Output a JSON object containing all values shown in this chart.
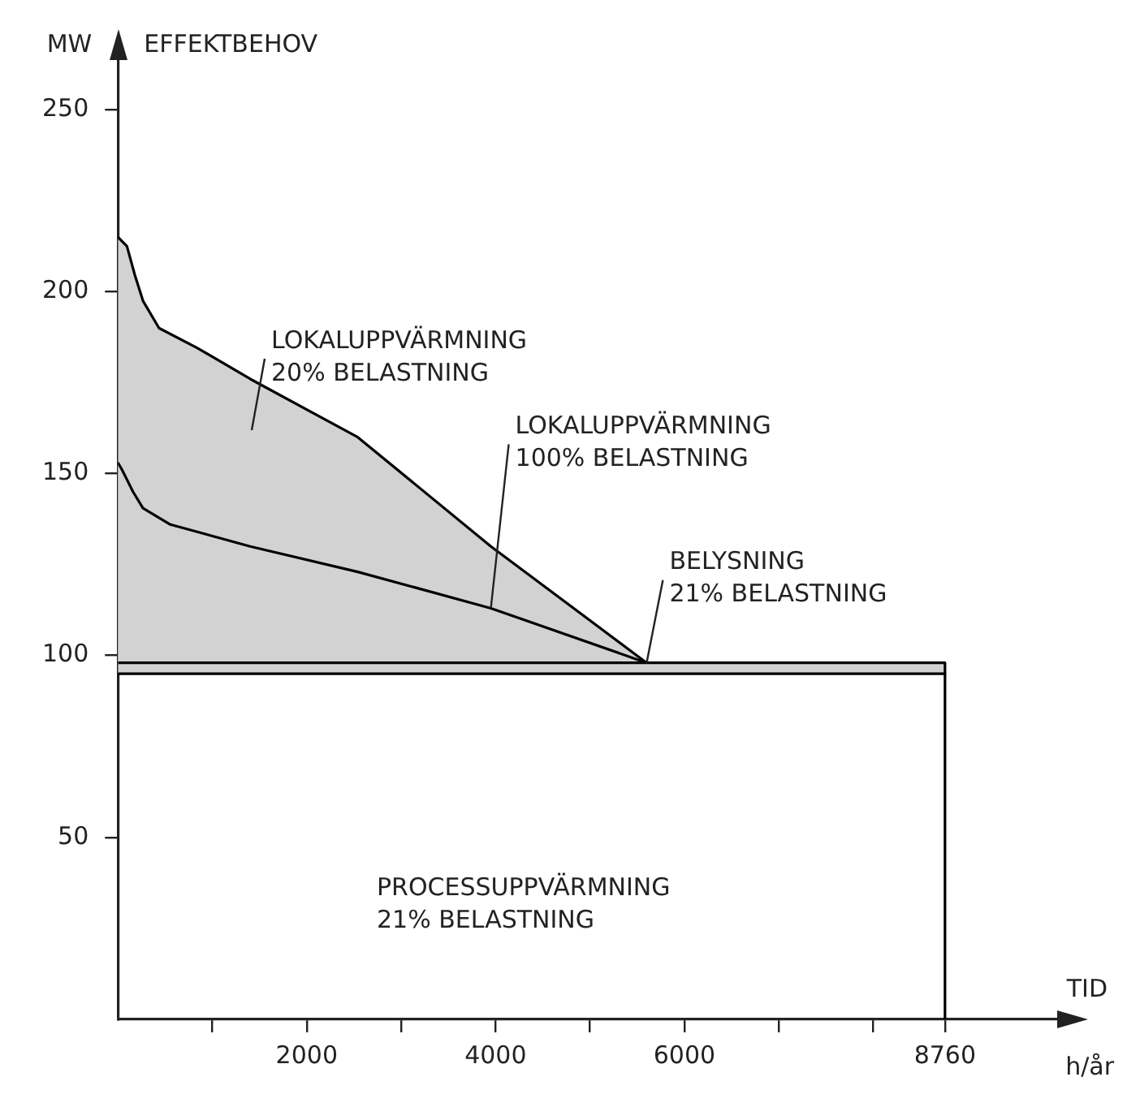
{
  "chart_data": {
    "type": "area",
    "title": "EFFEKTBEHOV",
    "ylabel": "MW",
    "xlabel": "TID",
    "annotations": [
      "LOKALUPPVÄRMNING\n20% BELASTNING",
      {
        "text": "LOKALUPPVÄRMNING\n100% BELASTNING",
        "x": 3950,
        "y": 113
      },
      {
        "text": "BELYSNING\n21% BELASTNING",
        "x": 5600,
        "y": 98
      },
      "PROCESSUPPVÄRMNING\n21% BELASTNING",
      "h/år"
    ],
    "series": [
      {
        "type": "line",
        "color": "#000000",
        "x": [
          0,
          8760,
          8760
        ],
        "values": [
          95,
          95,
          0
        ]
      },
      {
        "color": "#000000",
        "x": [
          0,
          8760,
          8760
        ],
        "values": [
          98,
          98,
          95
        ]
      },
      {
        "color": "#000000",
        "x": [
          0,
          44,
          160,
          265,
          555,
          1400,
          2540,
          3950,
          5600
        ],
        "values": [
          153,
          151,
          145,
          140.5,
          136,
          130,
          123,
          113,
          98
        ]
      },
      {
        "color": "#000000",
        "x": [
          0,
          95,
          180,
          265,
          435,
          842,
          1402,
          2540,
          3950,
          5600
        ],
        "values": [
          215,
          212.5,
          204.5,
          197.5,
          190,
          184.5,
          176,
          160,
          130,
          98
        ]
      }
    ],
    "xlim": [
      0,
      10000
    ],
    "xticks": [
      {
        "value": 1000,
        "label": null
      },
      2000,
      {
        "value": 3000,
        "label": null
      },
      4000,
      {
        "value": 5000,
        "label": null
      },
      6000,
      {
        "value": 7000,
        "label": null
      },
      {
        "value": 8000,
        "label": null
      },
      8760
    ],
    "ylim": [
      0,
      265
    ],
    "yticks": [
      50,
      100,
      150,
      200,
      250
    ],
    "grid": false,
    "legend": false,
    "marker": "none",
    "line_style": "solid"
  }
}
